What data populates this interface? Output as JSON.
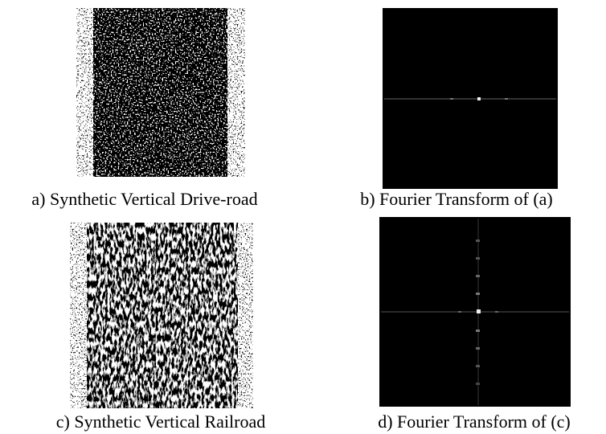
{
  "figures": [
    {
      "caption": "a) Synthetic Vertical Drive-road"
    },
    {
      "caption": "b) Fourier Transform of (a)"
    },
    {
      "caption": "c) Synthetic Vertical Railroad"
    },
    {
      "caption": "d) Fourier Transform of (c)"
    }
  ]
}
